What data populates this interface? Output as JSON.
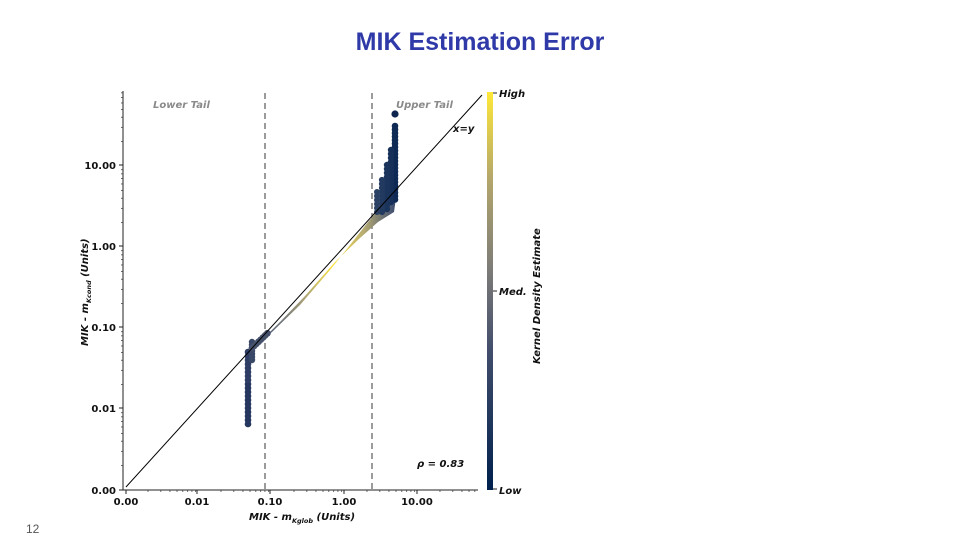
{
  "slide": {
    "title": "MIK Estimation Error",
    "page_number": "12"
  },
  "chart_data": {
    "type": "scatter",
    "title": "",
    "xlabel": "MIK - m",
    "xlabel_sub": "Kglob",
    "xlabel_unit": " (Units)",
    "ylabel": "MIK - m",
    "ylabel_sub": "Kcond",
    "ylabel_unit": " (Units)",
    "x_ticks": [
      "0.00",
      "0.01",
      "0.10",
      "1.00",
      "10.00"
    ],
    "y_ticks": [
      "0.00",
      "0.01",
      "0.10",
      "1.00",
      "10.00"
    ],
    "scale": "log",
    "grid": false,
    "tails": {
      "lower_label": "Lower Tail",
      "upper_label": "Upper Tail",
      "lower_threshold": 0.09,
      "upper_threshold": 2.3
    },
    "reference_line_label": "x=y",
    "annotation": "ρ = 0.83",
    "colorbar": {
      "label": "Kernel Density Estimate",
      "high": "High",
      "med": "Med.",
      "low": "Low",
      "colors": [
        "#00204d",
        "#575c6d",
        "#7c7b78",
        "#a69d75",
        "#fee838"
      ]
    },
    "point_groups": [
      {
        "x": 0.05,
        "y_from": 0.006,
        "y_to": 0.05,
        "density": 0.05
      },
      {
        "x": 0.05,
        "y_from": 0.05,
        "y_to": 0.06,
        "density": 0.1
      },
      {
        "x": 4.8,
        "y_from": 6.0,
        "y_to": 45.0,
        "density": 0.05
      },
      {
        "x": 4.6,
        "y_from": 3.5,
        "y_to": 6.0,
        "density": 0.1
      }
    ],
    "main_band": {
      "x_from": 0.05,
      "x_to": 4.8,
      "y_from": 0.055,
      "y_to": 3.5,
      "peak_x": 0.8
    }
  }
}
